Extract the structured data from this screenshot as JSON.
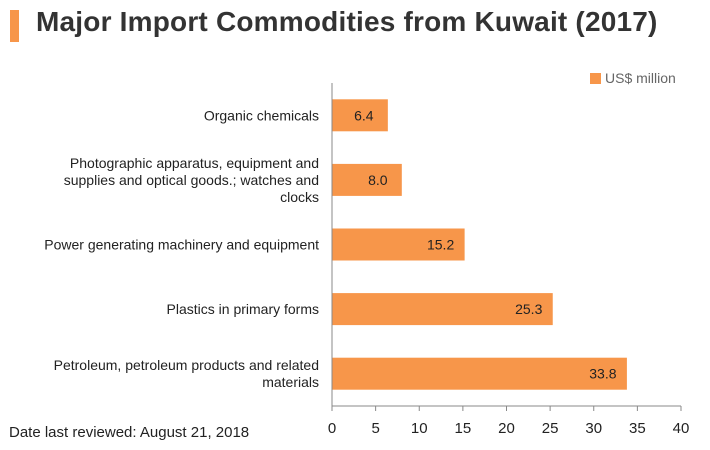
{
  "header": {
    "title": "Major Import Commodities from Kuwait (2017)"
  },
  "legend": {
    "label": "US$ million"
  },
  "footer": {
    "text": "Date last reviewed: August 21, 2018"
  },
  "colors": {
    "bar": "#f7964a",
    "accent": "#f7964a",
    "axis": "#888888"
  },
  "chart_data": {
    "type": "bar",
    "orientation": "horizontal",
    "title": "Major Import Commodities from Kuwait (2017)",
    "categories": [
      [
        "Organic chemicals"
      ],
      [
        "Photographic apparatus, equipment and",
        "supplies and optical goods.; watches and",
        "clocks"
      ],
      [
        "Power generating machinery and equipment"
      ],
      [
        "Plastics in primary forms"
      ],
      [
        "Petroleum, petroleum products and related",
        "materials"
      ]
    ],
    "series": [
      {
        "name": "US$ million",
        "values": [
          6.4,
          8.0,
          15.2,
          25.3,
          33.8
        ],
        "labels": [
          "6.4",
          "8.0",
          "15.2",
          "25.3",
          "33.8"
        ]
      }
    ],
    "xlim": [
      0,
      40
    ],
    "xticks": [
      0,
      5,
      10,
      15,
      20,
      25,
      30,
      35,
      40
    ],
    "grid": false,
    "legend_position": "top-right"
  }
}
